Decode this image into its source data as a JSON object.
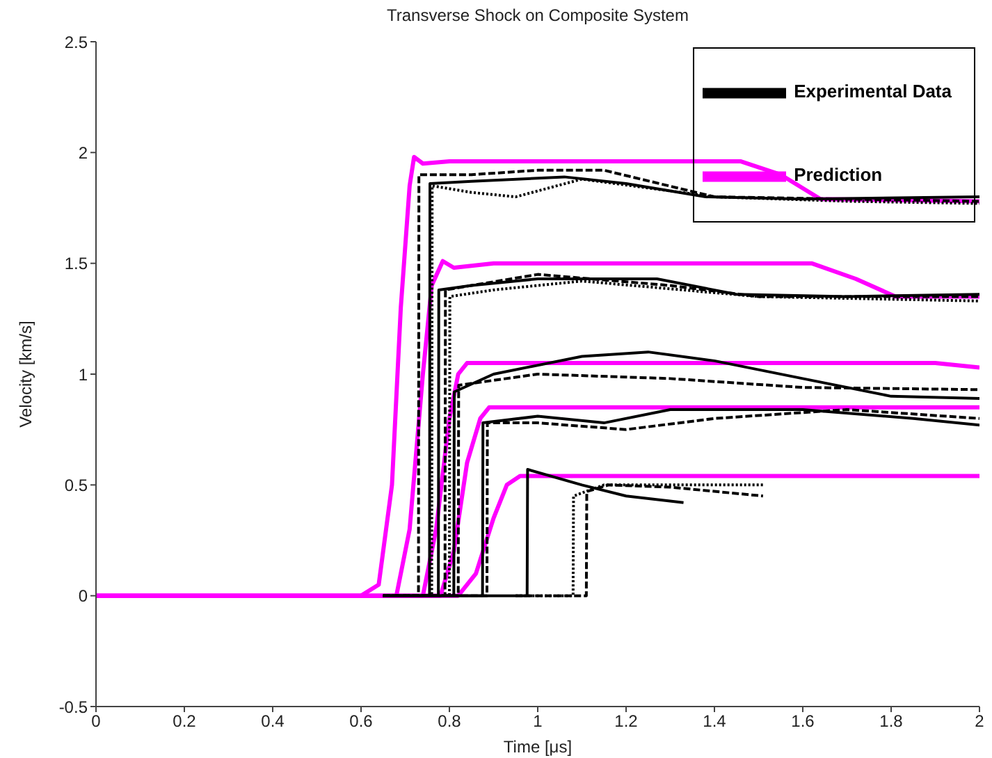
{
  "chart_data": {
    "type": "line",
    "title": "Transverse Shock on Composite System",
    "xlabel": "Time [μs]",
    "ylabel": "Velocity [km/s]",
    "xlim": [
      0,
      2
    ],
    "xticks": [
      0,
      0.2,
      0.4,
      0.6,
      0.8,
      1,
      1.2,
      1.4,
      1.6,
      1.8,
      2
    ],
    "ylim": [
      -0.5,
      2.5
    ],
    "yticks": [
      -0.5,
      0,
      0.5,
      1,
      1.5,
      2,
      2.5
    ],
    "grid": false,
    "legend": "top right",
    "marker": "none",
    "series": [
      {
        "name": "Experimental Data",
        "color": "#000000",
        "line_style": "solid",
        "x": [
          0.65,
          0.755,
          0.756,
          0.85,
          1.06,
          1.2,
          1.38,
          1.6,
          2
        ],
        "values": [
          0,
          0,
          1.86,
          1.87,
          1.89,
          1.86,
          1.8,
          1.79,
          1.8
        ]
      },
      {
        "color": "#000000",
        "line_style": "dashed",
        "x": [
          0.65,
          0.73,
          0.731,
          0.85,
          1.0,
          1.15,
          1.4,
          1.7,
          2
        ],
        "values": [
          0,
          0,
          1.9,
          1.9,
          1.92,
          1.92,
          1.8,
          1.79,
          1.78
        ]
      },
      {
        "color": "#000000",
        "line_style": "dotted",
        "x": [
          0.65,
          0.76,
          0.761,
          0.85,
          0.95,
          1.1,
          1.4,
          1.7,
          2
        ],
        "values": [
          0,
          0,
          1.85,
          1.82,
          1.8,
          1.88,
          1.8,
          1.78,
          1.77
        ]
      },
      {
        "color": "#000000",
        "line_style": "solid",
        "x": [
          0.65,
          0.775,
          0.776,
          0.85,
          1.0,
          1.27,
          1.45,
          1.7,
          2
        ],
        "values": [
          0,
          0,
          1.38,
          1.4,
          1.43,
          1.43,
          1.36,
          1.35,
          1.36
        ]
      },
      {
        "color": "#000000",
        "line_style": "dashed",
        "x": [
          0.65,
          0.79,
          0.791,
          0.85,
          1.0,
          1.3,
          1.5,
          2
        ],
        "values": [
          0,
          0,
          1.38,
          1.4,
          1.45,
          1.4,
          1.35,
          1.35
        ]
      },
      {
        "color": "#000000",
        "line_style": "dotted",
        "x": [
          0.65,
          0.8,
          0.801,
          0.9,
          1.1,
          1.5,
          2
        ],
        "values": [
          0,
          0,
          1.35,
          1.38,
          1.42,
          1.35,
          1.33
        ]
      },
      {
        "color": "#000000",
        "line_style": "solid",
        "x": [
          0.65,
          0.81,
          0.811,
          0.9,
          1.1,
          1.25,
          1.4,
          1.6,
          1.8,
          2
        ],
        "values": [
          0,
          0,
          0.92,
          1.0,
          1.08,
          1.1,
          1.06,
          0.98,
          0.9,
          0.89
        ]
      },
      {
        "color": "#000000",
        "line_style": "dashed",
        "x": [
          0.65,
          0.82,
          0.821,
          1.0,
          1.3,
          1.6,
          2
        ],
        "values": [
          0,
          0,
          0.95,
          1.0,
          0.98,
          0.94,
          0.93
        ]
      },
      {
        "color": "#000000",
        "line_style": "solid",
        "x": [
          0.65,
          0.875,
          0.876,
          1.0,
          1.15,
          1.3,
          1.6,
          1.85,
          2
        ],
        "values": [
          0,
          0,
          0.78,
          0.81,
          0.78,
          0.84,
          0.84,
          0.8,
          0.77
        ]
      },
      {
        "color": "#000000",
        "line_style": "dashed",
        "x": [
          0.65,
          0.885,
          0.886,
          1.0,
          1.2,
          1.4,
          1.7,
          2
        ],
        "values": [
          0,
          0,
          0.78,
          0.78,
          0.75,
          0.8,
          0.84,
          0.8
        ]
      },
      {
        "color": "#000000",
        "line_style": "solid",
        "x": [
          0.65,
          0.976,
          0.977,
          1.1,
          1.2,
          1.33
        ],
        "values": [
          0,
          0,
          0.57,
          0.5,
          0.45,
          0.42
        ]
      },
      {
        "color": "#000000",
        "line_style": "dotted",
        "x": [
          0.95,
          1.08,
          1.081,
          1.15,
          1.51
        ],
        "values": [
          0,
          0,
          0.45,
          0.5,
          0.5
        ]
      },
      {
        "color": "#000000",
        "line_style": "dashed",
        "x": [
          0.95,
          1.11,
          1.111,
          1.16,
          1.3,
          1.51
        ],
        "values": [
          0,
          0,
          0.47,
          0.5,
          0.49,
          0.45
        ]
      },
      {
        "name": "Prediction",
        "color": "#ff00ff",
        "line_style": "solid",
        "x": [
          0,
          0.6,
          0.64,
          0.67,
          0.69,
          0.71,
          0.72,
          0.74,
          0.8,
          1.46,
          1.55,
          1.64,
          2
        ],
        "values": [
          0,
          0,
          0.05,
          0.5,
          1.3,
          1.85,
          1.98,
          1.95,
          1.96,
          1.96,
          1.9,
          1.79,
          1.78
        ]
      },
      {
        "color": "#ff00ff",
        "line_style": "solid",
        "x": [
          0,
          0.68,
          0.71,
          0.74,
          0.76,
          0.785,
          0.81,
          0.9,
          1.62,
          1.72,
          1.81,
          2
        ],
        "values": [
          0,
          0,
          0.3,
          1.0,
          1.4,
          1.51,
          1.48,
          1.5,
          1.5,
          1.43,
          1.35,
          1.35
        ]
      },
      {
        "color": "#ff00ff",
        "line_style": "solid",
        "x": [
          0,
          0.74,
          0.77,
          0.8,
          0.82,
          0.84,
          1.0,
          1.9,
          2
        ],
        "values": [
          0,
          0,
          0.3,
          0.8,
          1.0,
          1.05,
          1.05,
          1.05,
          1.03
        ]
      },
      {
        "color": "#ff00ff",
        "line_style": "solid",
        "x": [
          0,
          0.78,
          0.81,
          0.84,
          0.87,
          0.89,
          1.2,
          2
        ],
        "values": [
          0,
          0,
          0.2,
          0.6,
          0.8,
          0.85,
          0.85,
          0.85
        ]
      },
      {
        "color": "#ff00ff",
        "line_style": "solid",
        "x": [
          0,
          0.82,
          0.86,
          0.9,
          0.93,
          0.96,
          1.2,
          2
        ],
        "values": [
          0,
          0,
          0.1,
          0.35,
          0.5,
          0.54,
          0.54,
          0.54
        ]
      }
    ]
  }
}
